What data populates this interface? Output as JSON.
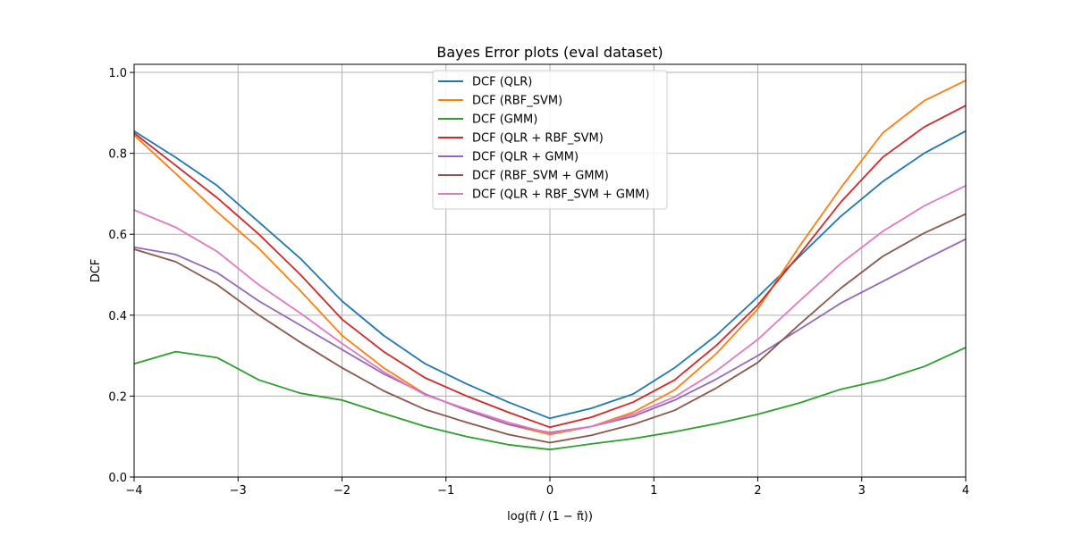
{
  "chart_data": {
    "type": "line",
    "title": "Bayes Error plots (eval dataset)",
    "xlabel": "log(π̃ / (1 − π̃))",
    "ylabel": "DCF",
    "xlim": [
      -4,
      4
    ],
    "ylim": [
      0,
      1.02
    ],
    "xticks": [
      -4,
      -3,
      -2,
      -1,
      0,
      1,
      2,
      3,
      4
    ],
    "xtick_labels": [
      "−4",
      "−3",
      "−2",
      "−1",
      "0",
      "1",
      "2",
      "3",
      "4"
    ],
    "yticks": [
      0.0,
      0.2,
      0.4,
      0.6,
      0.8,
      1.0
    ],
    "ytick_labels": [
      "0.0",
      "0.2",
      "0.4",
      "0.6",
      "0.8",
      "1.0"
    ],
    "grid": true,
    "legend_position": "top-center",
    "x": [
      -4,
      -3.6,
      -3.2,
      -2.8,
      -2.4,
      -2,
      -1.6,
      -1.2,
      -0.8,
      -0.4,
      0,
      0.4,
      0.8,
      1.2,
      1.6,
      2,
      2.4,
      2.8,
      3.2,
      3.6,
      4
    ],
    "series": [
      {
        "name": "DCF (QLR)",
        "color": "#1f77b4",
        "values": [
          0.855,
          0.79,
          0.72,
          0.63,
          0.54,
          0.435,
          0.35,
          0.28,
          0.23,
          0.185,
          0.145,
          0.17,
          0.205,
          0.27,
          0.35,
          0.445,
          0.545,
          0.645,
          0.73,
          0.8,
          0.855
        ]
      },
      {
        "name": "DCF (RBF_SVM)",
        "color": "#ff7f0e",
        "values": [
          0.845,
          0.75,
          0.655,
          0.565,
          0.46,
          0.35,
          0.27,
          0.205,
          0.165,
          0.13,
          0.105,
          0.125,
          0.16,
          0.215,
          0.305,
          0.415,
          0.57,
          0.715,
          0.85,
          0.93,
          0.98
        ]
      },
      {
        "name": "DCF (GMM)",
        "color": "#2ca02c",
        "values": [
          0.28,
          0.31,
          0.295,
          0.24,
          0.207,
          0.19,
          0.157,
          0.125,
          0.1,
          0.08,
          0.068,
          0.082,
          0.095,
          0.112,
          0.132,
          0.155,
          0.183,
          0.217,
          0.24,
          0.273,
          0.32
        ]
      },
      {
        "name": "DCF (QLR + RBF_SVM)",
        "color": "#d62728",
        "values": [
          0.85,
          0.77,
          0.69,
          0.6,
          0.5,
          0.39,
          0.31,
          0.245,
          0.2,
          0.16,
          0.123,
          0.148,
          0.185,
          0.24,
          0.325,
          0.425,
          0.55,
          0.68,
          0.79,
          0.865,
          0.918
        ]
      },
      {
        "name": "DCF (QLR + GMM)",
        "color": "#9467bd",
        "values": [
          0.568,
          0.55,
          0.505,
          0.435,
          0.375,
          0.315,
          0.255,
          0.205,
          0.165,
          0.13,
          0.11,
          0.125,
          0.15,
          0.19,
          0.242,
          0.3,
          0.365,
          0.43,
          0.483,
          0.537,
          0.588
        ]
      },
      {
        "name": "DCF (RBF_SVM + GMM)",
        "color": "#8c564b",
        "values": [
          0.563,
          0.532,
          0.475,
          0.4,
          0.333,
          0.27,
          0.213,
          0.167,
          0.135,
          0.105,
          0.085,
          0.103,
          0.13,
          0.165,
          0.22,
          0.283,
          0.377,
          0.467,
          0.545,
          0.603,
          0.65
        ]
      },
      {
        "name": "DCF (QLR + RBF_SVM + GMM)",
        "color": "#e377c2",
        "values": [
          0.66,
          0.617,
          0.557,
          0.475,
          0.405,
          0.33,
          0.26,
          0.203,
          0.168,
          0.135,
          0.108,
          0.125,
          0.155,
          0.198,
          0.262,
          0.34,
          0.435,
          0.528,
          0.607,
          0.67,
          0.72
        ]
      }
    ]
  }
}
